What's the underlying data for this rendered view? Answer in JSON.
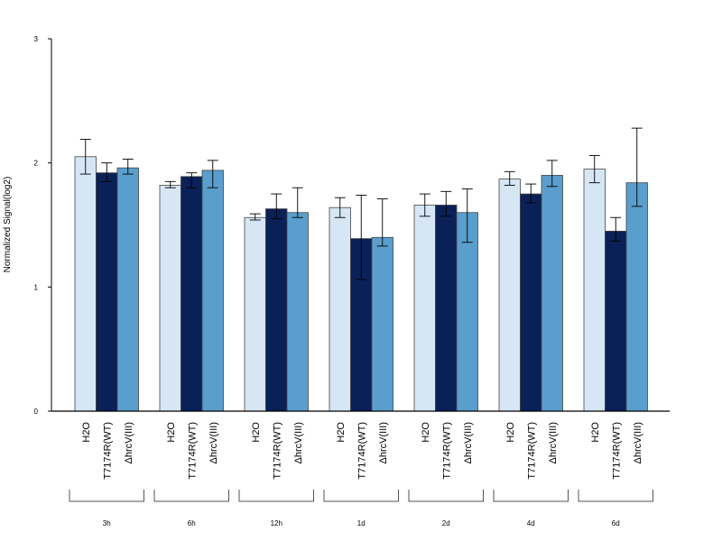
{
  "chart_data": {
    "type": "bar",
    "ylabel": "Normalized Signal(log2)",
    "ylim": [
      0,
      3
    ],
    "yticks": [
      "0",
      "1",
      "2",
      "3"
    ],
    "grid": false,
    "categories": [
      "3h",
      "6h",
      "12h",
      "1d",
      "2d",
      "4d",
      "6d"
    ],
    "bar_labels": [
      "H2O",
      "T7174R(WT)",
      "ΔhrcV(III)"
    ],
    "series": [
      {
        "name": "H2O",
        "color": "#d6e6f5",
        "values": [
          2.05,
          1.82,
          1.56,
          1.64,
          1.66,
          1.87,
          1.95
        ],
        "err_low": [
          1.91,
          1.8,
          1.54,
          1.56,
          1.57,
          1.82,
          1.84
        ],
        "err_high": [
          2.19,
          1.85,
          1.59,
          1.72,
          1.75,
          1.93,
          2.06
        ]
      },
      {
        "name": "T7174R(WT)",
        "color": "#0a2158",
        "values": [
          1.92,
          1.89,
          1.63,
          1.39,
          1.66,
          1.75,
          1.45
        ],
        "err_low": [
          1.85,
          1.8,
          1.55,
          1.06,
          1.57,
          1.68,
          1.37
        ],
        "err_high": [
          2.0,
          1.92,
          1.75,
          1.74,
          1.77,
          1.83,
          1.56
        ]
      },
      {
        "name": "ΔhrcV(III)",
        "color": "#5a9ecd",
        "values": [
          1.96,
          1.94,
          1.6,
          1.4,
          1.6,
          1.9,
          1.84
        ],
        "err_low": [
          1.91,
          1.8,
          1.56,
          1.33,
          1.36,
          1.81,
          1.65
        ],
        "err_high": [
          2.03,
          2.02,
          1.8,
          1.71,
          1.79,
          2.02,
          2.28
        ]
      }
    ]
  }
}
